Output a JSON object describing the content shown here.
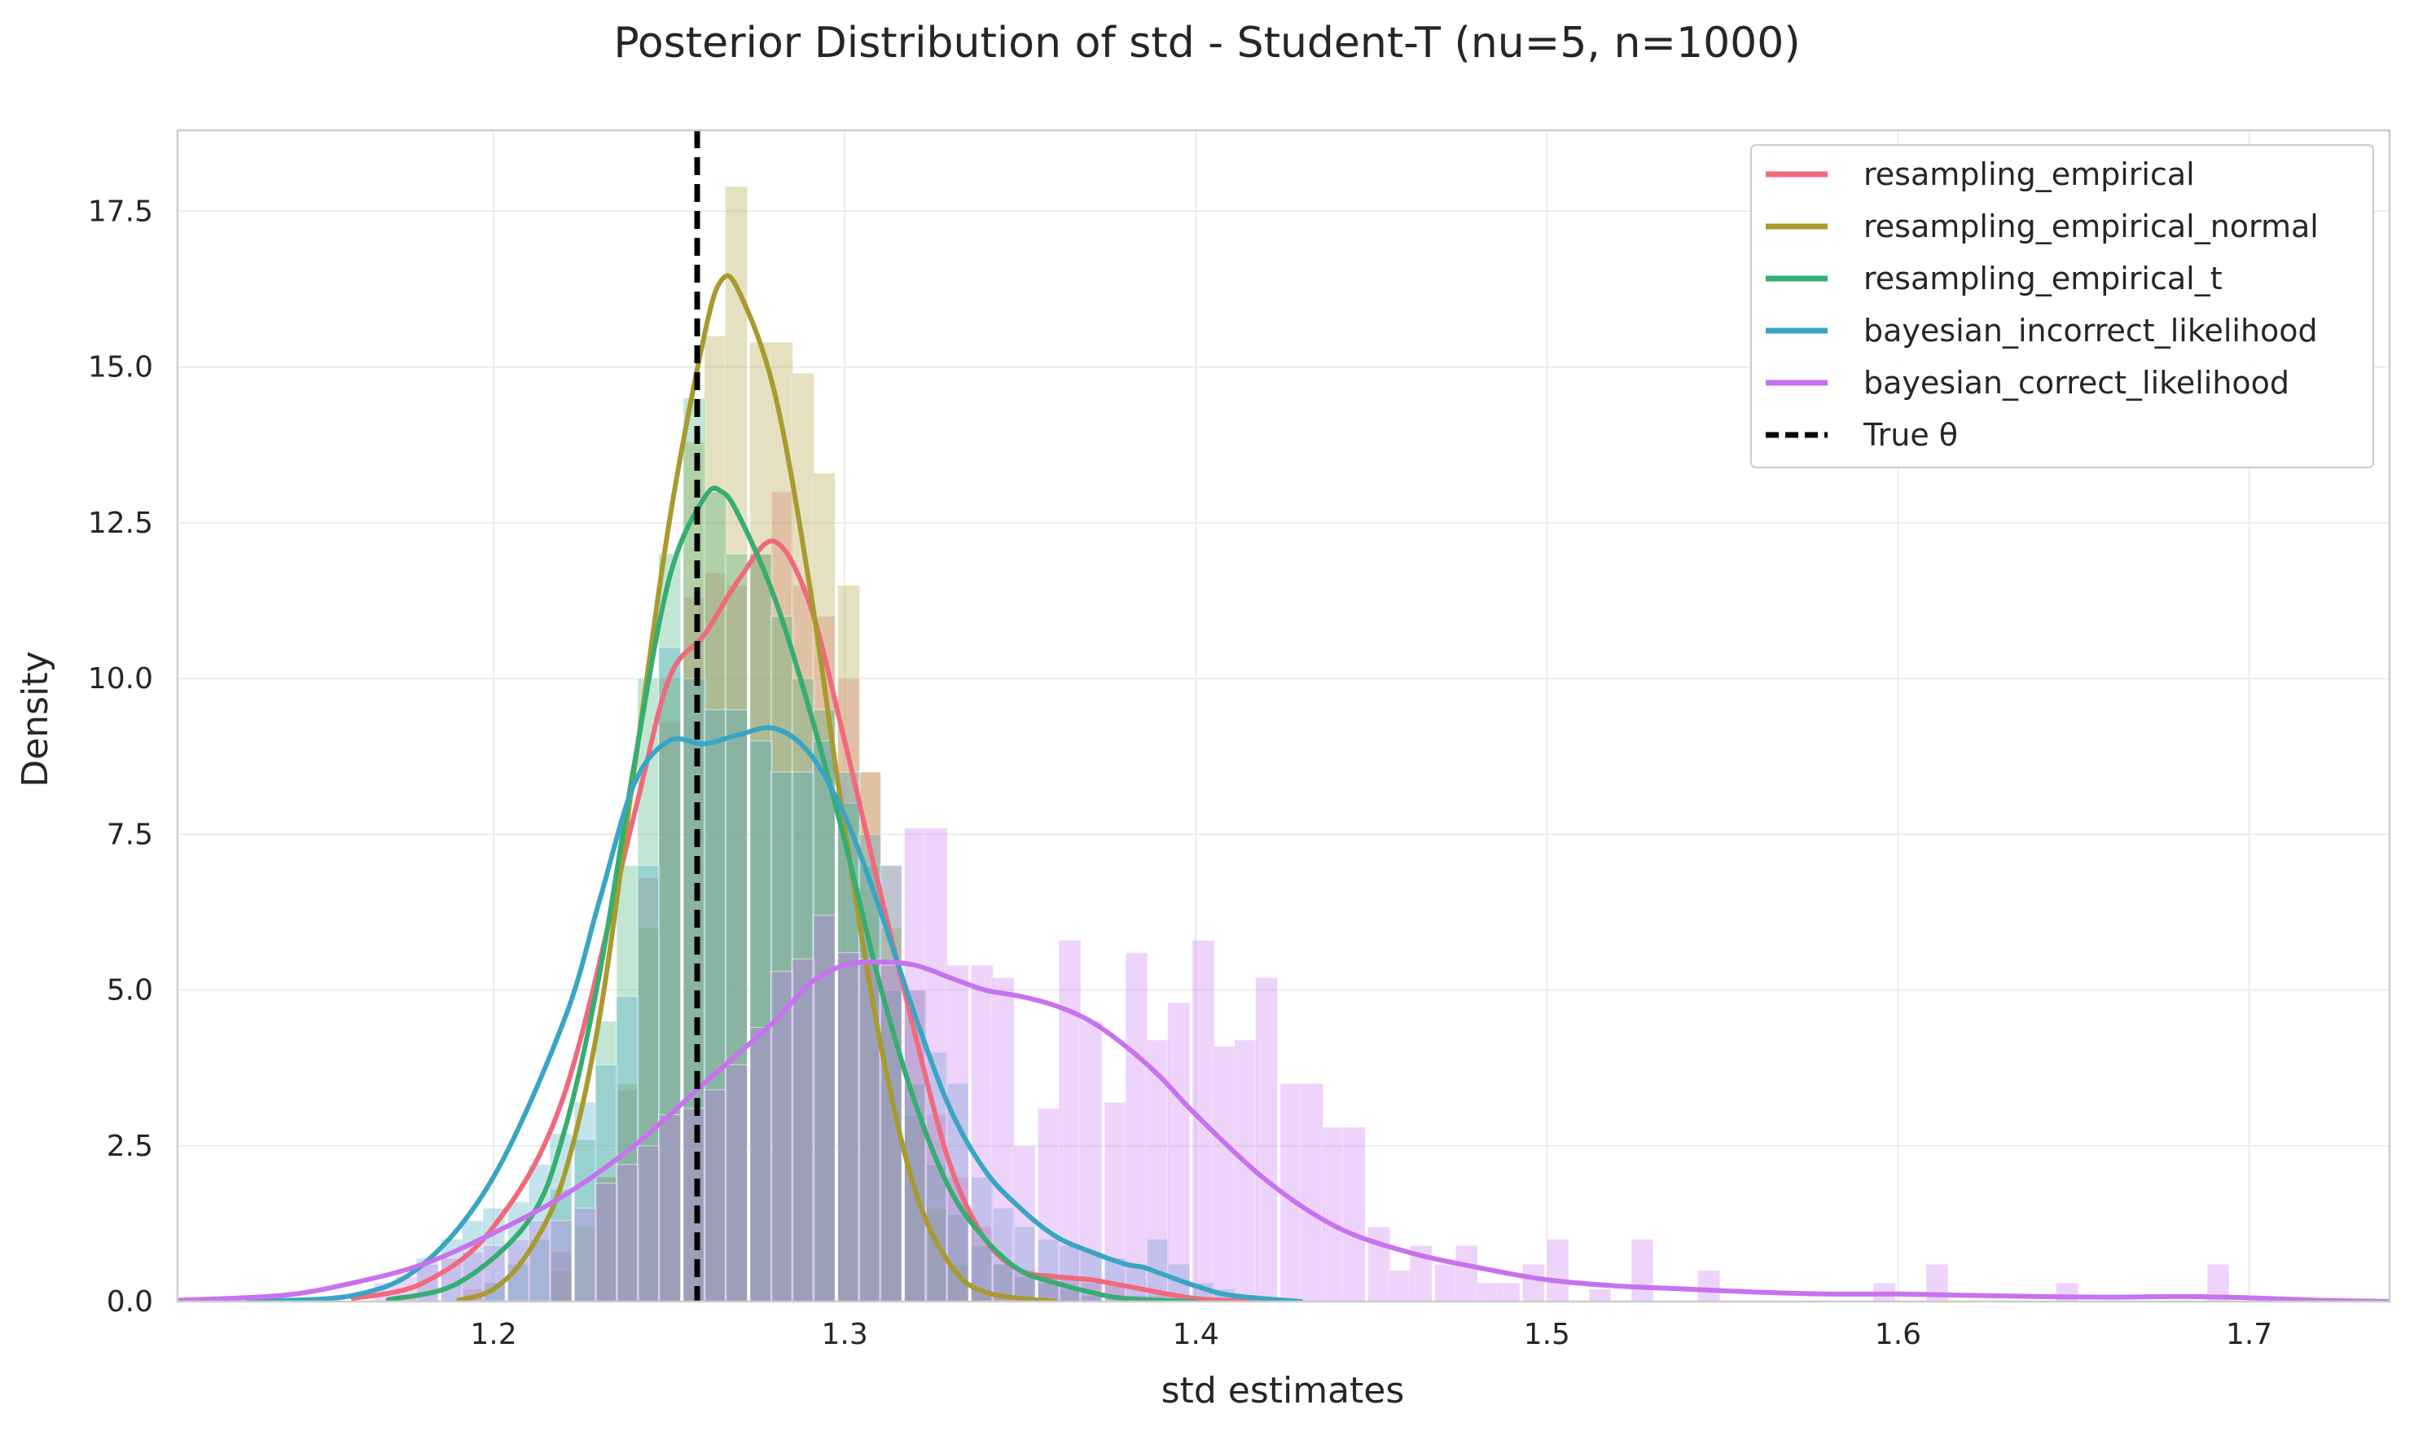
{
  "chart_data": {
    "type": "histogram",
    "title": "Posterior Distribution of std - Student-T (nu=5, n=1000)",
    "xlabel": "std estimates",
    "ylabel": "Density",
    "xlim": [
      1.11,
      1.74
    ],
    "ylim": [
      0,
      18.8
    ],
    "x_ticks": [
      1.2,
      1.3,
      1.4,
      1.5,
      1.6,
      1.7
    ],
    "y_ticks": [
      "0.0",
      "2.5",
      "5.0",
      "7.5",
      "10.0",
      "12.5",
      "15.0",
      "17.5"
    ],
    "grid": true,
    "legend_position": "top-right",
    "reference_line": {
      "name": "True θ",
      "x": 1.258,
      "style": "dashed",
      "color": "#000000"
    },
    "bin_width": 0.0063,
    "series": [
      {
        "name": "resampling_empirical",
        "color": "#f0697c",
        "hist": [
          [
            1.172,
            0.1
          ],
          [
            1.191,
            0.2
          ],
          [
            1.216,
            0.8
          ],
          [
            1.229,
            2.0
          ],
          [
            1.235,
            3.4
          ],
          [
            1.241,
            6.8
          ],
          [
            1.247,
            9.3
          ],
          [
            1.254,
            11.3
          ],
          [
            1.26,
            11.7
          ],
          [
            1.266,
            11.5
          ],
          [
            1.273,
            12.0
          ],
          [
            1.279,
            13.0
          ],
          [
            1.285,
            11.5
          ],
          [
            1.291,
            11.0
          ],
          [
            1.298,
            10.0
          ],
          [
            1.304,
            8.5
          ],
          [
            1.31,
            7.0
          ],
          [
            1.317,
            5.0
          ],
          [
            1.323,
            3.0
          ],
          [
            1.329,
            2.0
          ],
          [
            1.336,
            1.2
          ],
          [
            1.342,
            0.6
          ],
          [
            1.348,
            0.5
          ],
          [
            1.355,
            0.4
          ],
          [
            1.361,
            0.4
          ],
          [
            1.367,
            0.3
          ],
          [
            1.374,
            0.3
          ],
          [
            1.38,
            0.1
          ],
          [
            1.386,
            0.1
          ]
        ],
        "kde": [
          [
            1.16,
            0.05
          ],
          [
            1.18,
            0.3
          ],
          [
            1.2,
            1.2
          ],
          [
            1.22,
            3.3
          ],
          [
            1.24,
            7.8
          ],
          [
            1.25,
            10.0
          ],
          [
            1.26,
            10.7
          ],
          [
            1.27,
            11.6
          ],
          [
            1.28,
            12.2
          ],
          [
            1.29,
            11.2
          ],
          [
            1.3,
            9.0
          ],
          [
            1.31,
            6.6
          ],
          [
            1.32,
            4.3
          ],
          [
            1.33,
            2.2
          ],
          [
            1.34,
            1.0
          ],
          [
            1.35,
            0.5
          ],
          [
            1.36,
            0.4
          ],
          [
            1.37,
            0.35
          ],
          [
            1.38,
            0.25
          ],
          [
            1.4,
            0.05
          ],
          [
            1.42,
            0.0
          ]
        ]
      },
      {
        "name": "resampling_empirical_normal",
        "color": "#a89a2e",
        "hist": [
          [
            1.216,
            0.5
          ],
          [
            1.223,
            1.2
          ],
          [
            1.229,
            2.0
          ],
          [
            1.235,
            3.5
          ],
          [
            1.241,
            6.0
          ],
          [
            1.247,
            10.0
          ],
          [
            1.254,
            13.8
          ],
          [
            1.26,
            15.5
          ],
          [
            1.266,
            17.9
          ],
          [
            1.273,
            15.4
          ],
          [
            1.279,
            15.4
          ],
          [
            1.285,
            14.9
          ],
          [
            1.291,
            13.3
          ],
          [
            1.298,
            11.5
          ],
          [
            1.304,
            8.5
          ],
          [
            1.31,
            6.0
          ],
          [
            1.317,
            3.0
          ],
          [
            1.323,
            1.5
          ],
          [
            1.329,
            0.6
          ],
          [
            1.336,
            0.2
          ]
        ],
        "kde": [
          [
            1.19,
            0.02
          ],
          [
            1.2,
            0.2
          ],
          [
            1.21,
            0.8
          ],
          [
            1.22,
            2.0
          ],
          [
            1.23,
            4.5
          ],
          [
            1.24,
            8.5
          ],
          [
            1.25,
            12.5
          ],
          [
            1.26,
            15.5
          ],
          [
            1.265,
            16.4
          ],
          [
            1.27,
            16.2
          ],
          [
            1.28,
            14.6
          ],
          [
            1.29,
            11.5
          ],
          [
            1.3,
            7.6
          ],
          [
            1.31,
            4.2
          ],
          [
            1.32,
            1.8
          ],
          [
            1.33,
            0.6
          ],
          [
            1.34,
            0.15
          ],
          [
            1.36,
            0.0
          ]
        ]
      },
      {
        "name": "resampling_empirical_t",
        "color": "#36ad71",
        "hist": [
          [
            1.197,
            0.3
          ],
          [
            1.204,
            0.6
          ],
          [
            1.21,
            1.0
          ],
          [
            1.216,
            1.8
          ],
          [
            1.223,
            2.6
          ],
          [
            1.229,
            4.5
          ],
          [
            1.235,
            7.0
          ],
          [
            1.241,
            10.0
          ],
          [
            1.247,
            12.0
          ],
          [
            1.254,
            14.5
          ],
          [
            1.26,
            13.0
          ],
          [
            1.266,
            12.0
          ],
          [
            1.273,
            12.0
          ],
          [
            1.279,
            11.0
          ],
          [
            1.285,
            10.0
          ],
          [
            1.291,
            9.5
          ],
          [
            1.298,
            8.0
          ],
          [
            1.304,
            7.0
          ],
          [
            1.31,
            5.0
          ],
          [
            1.317,
            3.5
          ],
          [
            1.323,
            2.2
          ],
          [
            1.329,
            1.4
          ],
          [
            1.336,
            0.9
          ],
          [
            1.342,
            0.6
          ],
          [
            1.348,
            0.4
          ],
          [
            1.355,
            0.3
          ],
          [
            1.361,
            0.2
          ],
          [
            1.367,
            0.1
          ]
        ],
        "kde": [
          [
            1.17,
            0.03
          ],
          [
            1.19,
            0.3
          ],
          [
            1.21,
            1.3
          ],
          [
            1.22,
            2.7
          ],
          [
            1.23,
            5.2
          ],
          [
            1.24,
            8.6
          ],
          [
            1.25,
            11.6
          ],
          [
            1.26,
            12.9
          ],
          [
            1.265,
            13.0
          ],
          [
            1.27,
            12.6
          ],
          [
            1.28,
            11.3
          ],
          [
            1.29,
            9.5
          ],
          [
            1.3,
            7.4
          ],
          [
            1.31,
            5.1
          ],
          [
            1.32,
            3.2
          ],
          [
            1.33,
            1.8
          ],
          [
            1.34,
            1.0
          ],
          [
            1.35,
            0.5
          ],
          [
            1.36,
            0.3
          ],
          [
            1.37,
            0.15
          ],
          [
            1.38,
            0.05
          ],
          [
            1.4,
            0.0
          ]
        ]
      },
      {
        "name": "bayesian_incorrect_likelihood",
        "color": "#3aa5c3",
        "hist": [
          [
            1.178,
            0.7
          ],
          [
            1.185,
            1.0
          ],
          [
            1.191,
            1.3
          ],
          [
            1.197,
            1.5
          ],
          [
            1.204,
            1.6
          ],
          [
            1.21,
            2.2
          ],
          [
            1.216,
            2.7
          ],
          [
            1.223,
            3.2
          ],
          [
            1.229,
            3.8
          ],
          [
            1.235,
            4.9
          ],
          [
            1.241,
            7.0
          ],
          [
            1.247,
            10.5
          ],
          [
            1.254,
            10.0
          ],
          [
            1.26,
            9.5
          ],
          [
            1.266,
            9.5
          ],
          [
            1.273,
            9.0
          ],
          [
            1.279,
            8.5
          ],
          [
            1.285,
            8.5
          ],
          [
            1.291,
            9.0
          ],
          [
            1.298,
            8.5
          ],
          [
            1.304,
            7.5
          ],
          [
            1.31,
            7.0
          ],
          [
            1.317,
            5.0
          ],
          [
            1.323,
            4.0
          ],
          [
            1.329,
            3.5
          ],
          [
            1.336,
            2.0
          ],
          [
            1.342,
            1.5
          ],
          [
            1.348,
            1.2
          ],
          [
            1.355,
            1.0
          ],
          [
            1.361,
            0.9
          ],
          [
            1.367,
            0.8
          ],
          [
            1.374,
            0.7
          ],
          [
            1.38,
            0.6
          ],
          [
            1.386,
            1.0
          ],
          [
            1.392,
            0.6
          ],
          [
            1.399,
            0.3
          ],
          [
            1.405,
            0.2
          ],
          [
            1.411,
            0.1
          ]
        ],
        "kde": [
          [
            1.13,
            0.01
          ],
          [
            1.16,
            0.1
          ],
          [
            1.18,
            0.6
          ],
          [
            1.2,
            2.0
          ],
          [
            1.22,
            4.5
          ],
          [
            1.23,
            6.4
          ],
          [
            1.24,
            8.3
          ],
          [
            1.25,
            9.0
          ],
          [
            1.26,
            8.95
          ],
          [
            1.27,
            9.1
          ],
          [
            1.28,
            9.2
          ],
          [
            1.29,
            8.8
          ],
          [
            1.3,
            7.8
          ],
          [
            1.31,
            6.3
          ],
          [
            1.32,
            4.6
          ],
          [
            1.33,
            3.1
          ],
          [
            1.34,
            2.1
          ],
          [
            1.35,
            1.5
          ],
          [
            1.36,
            1.05
          ],
          [
            1.37,
            0.8
          ],
          [
            1.38,
            0.6
          ],
          [
            1.385,
            0.55
          ],
          [
            1.39,
            0.45
          ],
          [
            1.4,
            0.25
          ],
          [
            1.41,
            0.1
          ],
          [
            1.43,
            0.0
          ]
        ]
      },
      {
        "name": "bayesian_correct_likelihood",
        "color": "#c772ee",
        "hist": [
          [
            1.166,
            0.3
          ],
          [
            1.172,
            0.4
          ],
          [
            1.178,
            0.6
          ],
          [
            1.185,
            0.7
          ],
          [
            1.191,
            0.8
          ],
          [
            1.197,
            0.9
          ],
          [
            1.204,
            1.0
          ],
          [
            1.21,
            1.3
          ],
          [
            1.216,
            1.3
          ],
          [
            1.223,
            1.5
          ],
          [
            1.229,
            1.9
          ],
          [
            1.235,
            2.2
          ],
          [
            1.241,
            2.5
          ],
          [
            1.247,
            3.0
          ],
          [
            1.254,
            3.1
          ],
          [
            1.26,
            3.4
          ],
          [
            1.266,
            3.8
          ],
          [
            1.273,
            4.4
          ],
          [
            1.279,
            5.3
          ],
          [
            1.285,
            5.5
          ],
          [
            1.291,
            6.2
          ],
          [
            1.298,
            5.6
          ],
          [
            1.304,
            5.5
          ],
          [
            1.31,
            5.4
          ],
          [
            1.317,
            7.6
          ],
          [
            1.323,
            7.6
          ],
          [
            1.329,
            5.4
          ],
          [
            1.336,
            5.4
          ],
          [
            1.342,
            5.2
          ],
          [
            1.348,
            2.5
          ],
          [
            1.355,
            3.1
          ],
          [
            1.361,
            5.8
          ],
          [
            1.367,
            4.5
          ],
          [
            1.374,
            3.2
          ],
          [
            1.38,
            5.6
          ],
          [
            1.386,
            4.2
          ],
          [
            1.392,
            4.8
          ],
          [
            1.399,
            5.8
          ],
          [
            1.405,
            4.1
          ],
          [
            1.411,
            4.2
          ],
          [
            1.417,
            5.2
          ],
          [
            1.424,
            3.5
          ],
          [
            1.43,
            3.5
          ],
          [
            1.436,
            2.8
          ],
          [
            1.442,
            2.8
          ],
          [
            1.449,
            1.2
          ],
          [
            1.455,
            0.5
          ],
          [
            1.461,
            0.9
          ],
          [
            1.468,
            0.6
          ],
          [
            1.474,
            0.9
          ],
          [
            1.48,
            0.3
          ],
          [
            1.486,
            0.3
          ],
          [
            1.493,
            0.6
          ],
          [
            1.5,
            1.0
          ],
          [
            1.512,
            0.2
          ],
          [
            1.524,
            1.0
          ],
          [
            1.543,
            0.5
          ],
          [
            1.593,
            0.3
          ],
          [
            1.608,
            0.6
          ],
          [
            1.645,
            0.3
          ],
          [
            1.688,
            0.6
          ]
        ],
        "kde": [
          [
            1.11,
            0.02
          ],
          [
            1.14,
            0.1
          ],
          [
            1.16,
            0.3
          ],
          [
            1.18,
            0.6
          ],
          [
            1.2,
            1.1
          ],
          [
            1.22,
            1.7
          ],
          [
            1.24,
            2.5
          ],
          [
            1.26,
            3.5
          ],
          [
            1.28,
            4.5
          ],
          [
            1.29,
            5.1
          ],
          [
            1.3,
            5.4
          ],
          [
            1.31,
            5.45
          ],
          [
            1.32,
            5.4
          ],
          [
            1.33,
            5.2
          ],
          [
            1.34,
            5.0
          ],
          [
            1.35,
            4.9
          ],
          [
            1.36,
            4.75
          ],
          [
            1.37,
            4.5
          ],
          [
            1.38,
            4.1
          ],
          [
            1.39,
            3.6
          ],
          [
            1.4,
            3.0
          ],
          [
            1.42,
            1.95
          ],
          [
            1.44,
            1.2
          ],
          [
            1.46,
            0.8
          ],
          [
            1.48,
            0.55
          ],
          [
            1.5,
            0.35
          ],
          [
            1.52,
            0.25
          ],
          [
            1.54,
            0.2
          ],
          [
            1.56,
            0.15
          ],
          [
            1.58,
            0.12
          ],
          [
            1.6,
            0.12
          ],
          [
            1.62,
            0.1
          ],
          [
            1.64,
            0.08
          ],
          [
            1.66,
            0.07
          ],
          [
            1.68,
            0.08
          ],
          [
            1.7,
            0.06
          ],
          [
            1.72,
            0.02
          ],
          [
            1.74,
            0.0
          ]
        ]
      }
    ]
  }
}
